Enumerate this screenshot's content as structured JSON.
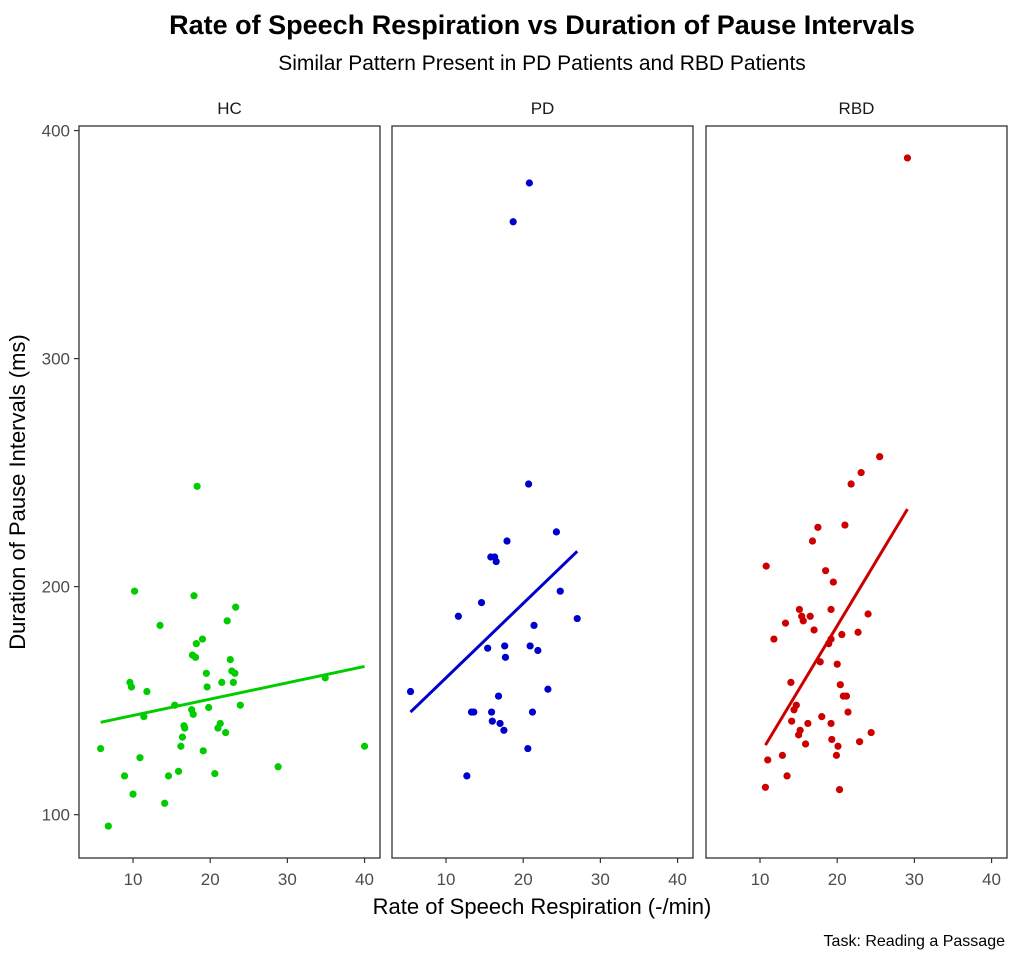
{
  "chart_data": {
    "type": "scatter",
    "title": "Rate of Speech Respiration vs Duration of Pause Intervals",
    "subtitle": "Similar Pattern Present in PD Patients and RBD Patients",
    "xlabel": "Rate of Speech Respiration (-/min)",
    "ylabel": "Duration of Pause Intervals (ms)",
    "caption": "Task: Reading a Passage",
    "xlim": [
      3,
      42
    ],
    "ylim": [
      81,
      402
    ],
    "x_ticks": [
      10,
      20,
      30,
      40
    ],
    "y_ticks": [
      100,
      200,
      300,
      400
    ],
    "grid": false,
    "panels": [
      {
        "label": "HC",
        "color": "#00cc00",
        "points": [
          [
            5.8,
            129
          ],
          [
            6.8,
            95
          ],
          [
            8.9,
            117
          ],
          [
            9.6,
            158
          ],
          [
            9.8,
            156
          ],
          [
            10.0,
            109
          ],
          [
            10.2,
            198
          ],
          [
            10.9,
            125
          ],
          [
            11.4,
            143
          ],
          [
            11.8,
            154
          ],
          [
            13.5,
            183
          ],
          [
            14.1,
            105
          ],
          [
            14.6,
            117
          ],
          [
            15.4,
            148
          ],
          [
            15.9,
            119
          ],
          [
            16.2,
            130
          ],
          [
            16.4,
            134
          ],
          [
            16.6,
            139
          ],
          [
            16.7,
            138
          ],
          [
            17.6,
            146
          ],
          [
            17.7,
            170
          ],
          [
            17.8,
            144
          ],
          [
            17.9,
            196
          ],
          [
            18.1,
            169
          ],
          [
            18.2,
            175
          ],
          [
            18.3,
            244
          ],
          [
            19.0,
            177
          ],
          [
            19.1,
            128
          ],
          [
            19.5,
            162
          ],
          [
            19.6,
            156
          ],
          [
            19.8,
            147
          ],
          [
            20.6,
            118
          ],
          [
            21.0,
            138
          ],
          [
            21.3,
            140
          ],
          [
            21.5,
            158
          ],
          [
            22.0,
            136
          ],
          [
            22.2,
            185
          ],
          [
            22.6,
            168
          ],
          [
            22.8,
            163
          ],
          [
            23.0,
            158
          ],
          [
            23.2,
            162
          ],
          [
            23.3,
            191
          ],
          [
            23.9,
            148
          ],
          [
            28.8,
            121
          ],
          [
            34.9,
            160
          ],
          [
            40.0,
            130
          ]
        ],
        "fit": [
          [
            5.8,
            140.5
          ],
          [
            40.0,
            165.0
          ]
        ]
      },
      {
        "label": "PD",
        "color": "#0000cc",
        "points": [
          [
            5.4,
            154
          ],
          [
            11.6,
            187
          ],
          [
            12.7,
            117
          ],
          [
            13.3,
            145
          ],
          [
            13.6,
            145
          ],
          [
            14.6,
            193
          ],
          [
            15.4,
            173
          ],
          [
            15.8,
            213
          ],
          [
            15.9,
            145
          ],
          [
            16.0,
            141
          ],
          [
            16.3,
            213
          ],
          [
            16.5,
            211
          ],
          [
            16.8,
            152
          ],
          [
            17.0,
            140
          ],
          [
            17.5,
            137
          ],
          [
            17.6,
            174
          ],
          [
            17.7,
            169
          ],
          [
            17.9,
            220
          ],
          [
            18.7,
            360
          ],
          [
            20.6,
            129
          ],
          [
            20.7,
            245
          ],
          [
            20.8,
            377
          ],
          [
            20.9,
            174
          ],
          [
            21.2,
            145
          ],
          [
            21.4,
            183
          ],
          [
            21.9,
            172
          ],
          [
            23.2,
            155
          ],
          [
            24.3,
            224
          ],
          [
            24.8,
            198
          ],
          [
            27.0,
            186
          ]
        ],
        "fit": [
          [
            5.4,
            145.0
          ],
          [
            27.0,
            215.5
          ]
        ]
      },
      {
        "label": "RBD",
        "color": "#cc0000",
        "points": [
          [
            10.7,
            112
          ],
          [
            10.8,
            209
          ],
          [
            11.0,
            124
          ],
          [
            11.8,
            177
          ],
          [
            12.9,
            126
          ],
          [
            13.3,
            184
          ],
          [
            13.5,
            117
          ],
          [
            14.0,
            158
          ],
          [
            14.1,
            141
          ],
          [
            14.4,
            146
          ],
          [
            14.7,
            148
          ],
          [
            15.0,
            135
          ],
          [
            15.1,
            190
          ],
          [
            15.2,
            137
          ],
          [
            15.4,
            187
          ],
          [
            15.6,
            185
          ],
          [
            15.9,
            131
          ],
          [
            16.2,
            140
          ],
          [
            16.5,
            187
          ],
          [
            16.8,
            220
          ],
          [
            17.0,
            181
          ],
          [
            17.5,
            226
          ],
          [
            17.8,
            167
          ],
          [
            18.0,
            143
          ],
          [
            18.5,
            207
          ],
          [
            18.9,
            175
          ],
          [
            19.2,
            190
          ],
          [
            19.2,
            177
          ],
          [
            19.2,
            140
          ],
          [
            19.3,
            133
          ],
          [
            19.5,
            202
          ],
          [
            19.9,
            126
          ],
          [
            20.0,
            166
          ],
          [
            20.1,
            130
          ],
          [
            20.3,
            111
          ],
          [
            20.4,
            157
          ],
          [
            20.6,
            179
          ],
          [
            20.8,
            152
          ],
          [
            21.0,
            227
          ],
          [
            21.2,
            152
          ],
          [
            21.4,
            145
          ],
          [
            21.8,
            245
          ],
          [
            22.7,
            180
          ],
          [
            22.9,
            132
          ],
          [
            23.1,
            250
          ],
          [
            24.0,
            188
          ],
          [
            24.4,
            136
          ],
          [
            25.5,
            257
          ],
          [
            29.1,
            388
          ]
        ],
        "fit": [
          [
            10.7,
            130.5
          ],
          [
            29.1,
            234.0
          ]
        ]
      }
    ]
  }
}
